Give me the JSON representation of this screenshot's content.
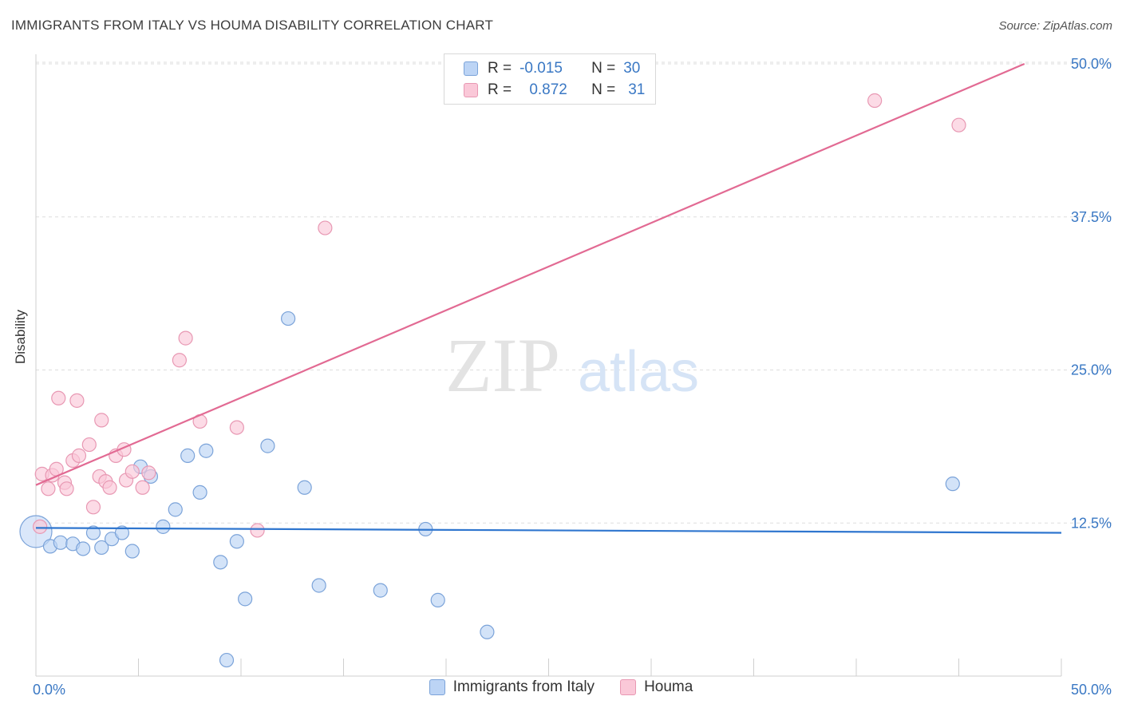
{
  "header": {
    "title": "IMMIGRANTS FROM ITALY VS HOUMA DISABILITY CORRELATION CHART",
    "source": "Source: ZipAtlas.com"
  },
  "watermark": {
    "zip": "ZIP",
    "atlas": "atlas"
  },
  "legend": {
    "rows": [
      {
        "r_label": "R =",
        "r_value": "-0.015",
        "n_label": "N =",
        "n_value": "30"
      },
      {
        "r_label": "R =",
        "r_value": "0.872",
        "n_label": "N =",
        "n_value": "31"
      }
    ]
  },
  "colors": {
    "italy_fill": "#bcd4f5",
    "italy_stroke": "#7ba3d9",
    "italy_line": "#2f76cf",
    "houma_fill": "#fac8d8",
    "houma_stroke": "#e898b3",
    "houma_line": "#e26a93",
    "tick_text": "#3a78c4",
    "grid": "#dedede"
  },
  "chart_data": {
    "type": "scatter",
    "title": "IMMIGRANTS FROM ITALY VS HOUMA DISABILITY CORRELATION CHART",
    "xlabel": "",
    "ylabel": "Disability",
    "xlim": [
      0,
      50
    ],
    "ylim": [
      0,
      50
    ],
    "x_ticks": [
      0,
      5,
      10,
      15,
      20,
      25,
      30,
      35,
      40,
      45,
      50
    ],
    "x_tick_labels": [
      {
        "value": 0,
        "label": "0.0%"
      },
      {
        "value": 50,
        "label": "50.0%"
      }
    ],
    "y_ticks": [
      {
        "value": 12.5,
        "label": "12.5%"
      },
      {
        "value": 25,
        "label": "25.0%"
      },
      {
        "value": 37.5,
        "label": "37.5%"
      },
      {
        "value": 50,
        "label": "50.0%"
      }
    ],
    "series": [
      {
        "name": "Immigrants from Italy",
        "r": -0.015,
        "n": 30,
        "trend": {
          "x": [
            0,
            50
          ],
          "y": [
            12.1,
            11.7
          ]
        },
        "points": [
          {
            "x": 0.0,
            "y": 11.8,
            "big": true
          },
          {
            "x": 0.7,
            "y": 10.6
          },
          {
            "x": 1.2,
            "y": 10.9
          },
          {
            "x": 1.8,
            "y": 10.8
          },
          {
            "x": 2.3,
            "y": 10.4
          },
          {
            "x": 2.8,
            "y": 11.7
          },
          {
            "x": 3.2,
            "y": 10.5
          },
          {
            "x": 3.7,
            "y": 11.2
          },
          {
            "x": 4.2,
            "y": 11.7
          },
          {
            "x": 4.7,
            "y": 10.2
          },
          {
            "x": 5.1,
            "y": 17.1
          },
          {
            "x": 5.6,
            "y": 16.3
          },
          {
            "x": 6.2,
            "y": 12.2
          },
          {
            "x": 6.8,
            "y": 13.6
          },
          {
            "x": 7.4,
            "y": 18.0
          },
          {
            "x": 8.0,
            "y": 15.0
          },
          {
            "x": 8.3,
            "y": 18.4
          },
          {
            "x": 9.0,
            "y": 9.3
          },
          {
            "x": 9.3,
            "y": 1.3
          },
          {
            "x": 9.8,
            "y": 11.0
          },
          {
            "x": 10.2,
            "y": 6.3
          },
          {
            "x": 11.3,
            "y": 18.8
          },
          {
            "x": 12.3,
            "y": 29.2
          },
          {
            "x": 13.1,
            "y": 15.4
          },
          {
            "x": 13.8,
            "y": 7.4
          },
          {
            "x": 16.8,
            "y": 7.0
          },
          {
            "x": 19.0,
            "y": 12.0
          },
          {
            "x": 19.6,
            "y": 6.2
          },
          {
            "x": 22.0,
            "y": 3.6
          },
          {
            "x": 44.7,
            "y": 15.7
          }
        ]
      },
      {
        "name": "Houma",
        "r": 0.872,
        "n": 31,
        "trend": {
          "x": [
            0,
            48.2
          ],
          "y": [
            15.6,
            50.0
          ]
        },
        "points": [
          {
            "x": 0.2,
            "y": 12.2
          },
          {
            "x": 0.3,
            "y": 16.5
          },
          {
            "x": 0.6,
            "y": 15.3
          },
          {
            "x": 0.8,
            "y": 16.4
          },
          {
            "x": 1.0,
            "y": 16.9
          },
          {
            "x": 1.1,
            "y": 22.7
          },
          {
            "x": 1.4,
            "y": 15.8
          },
          {
            "x": 1.5,
            "y": 15.3
          },
          {
            "x": 1.8,
            "y": 17.6
          },
          {
            "x": 2.0,
            "y": 22.5
          },
          {
            "x": 2.1,
            "y": 18.0
          },
          {
            "x": 2.6,
            "y": 18.9
          },
          {
            "x": 2.8,
            "y": 13.8
          },
          {
            "x": 3.1,
            "y": 16.3
          },
          {
            "x": 3.2,
            "y": 20.9
          },
          {
            "x": 3.4,
            "y": 15.9
          },
          {
            "x": 3.6,
            "y": 15.4
          },
          {
            "x": 3.9,
            "y": 18.0
          },
          {
            "x": 4.3,
            "y": 18.5
          },
          {
            "x": 4.4,
            "y": 16.0
          },
          {
            "x": 4.7,
            "y": 16.7
          },
          {
            "x": 5.2,
            "y": 15.4
          },
          {
            "x": 5.5,
            "y": 16.6
          },
          {
            "x": 7.0,
            "y": 25.8
          },
          {
            "x": 7.3,
            "y": 27.6
          },
          {
            "x": 8.0,
            "y": 20.8
          },
          {
            "x": 9.8,
            "y": 20.3
          },
          {
            "x": 10.8,
            "y": 11.9
          },
          {
            "x": 14.1,
            "y": 36.6
          },
          {
            "x": 40.9,
            "y": 47.0
          },
          {
            "x": 45.0,
            "y": 45.0
          }
        ]
      }
    ]
  },
  "bottom_legend": [
    {
      "label": "Immigrants from Italy"
    },
    {
      "label": "Houma"
    }
  ]
}
